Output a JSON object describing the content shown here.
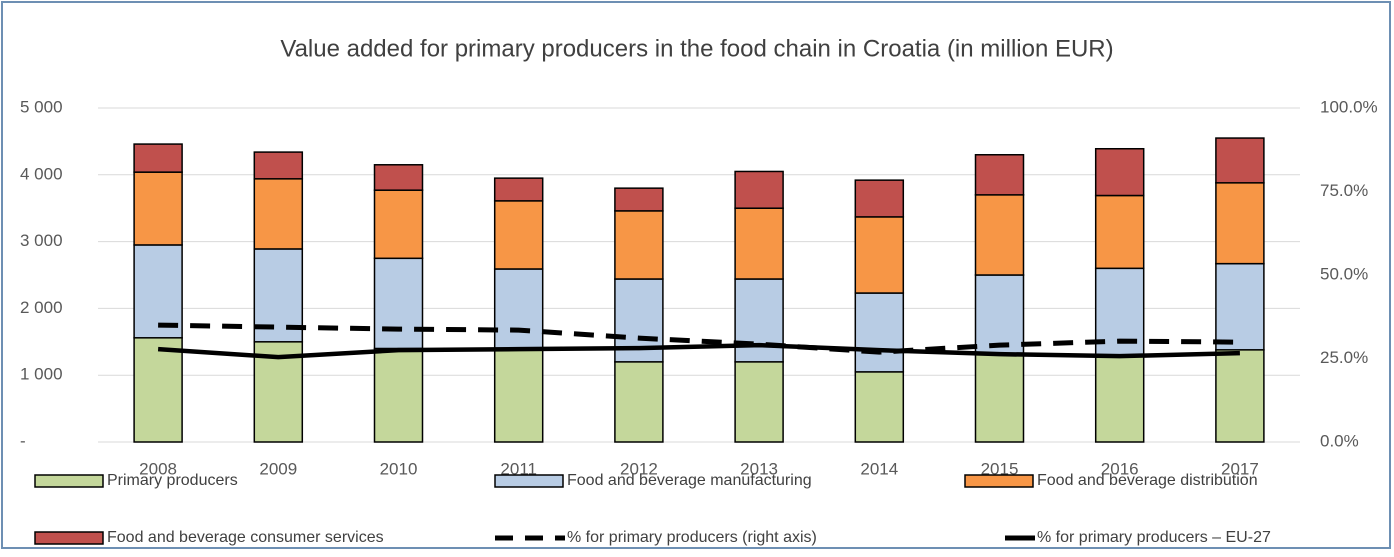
{
  "chart_data": {
    "type": "bar",
    "stacked": true,
    "title": "Value added for primary producers in the food chain in Croatia (in million EUR)",
    "categories": [
      "2008",
      "2009",
      "2010",
      "2011",
      "2012",
      "2013",
      "2014",
      "2015",
      "2016",
      "2017"
    ],
    "series": [
      {
        "name": "Primary producers",
        "color": "#c4d79b",
        "values": [
          1560,
          1500,
          1400,
          1400,
          1200,
          1200,
          1050,
          1330,
          1300,
          1380
        ]
      },
      {
        "name": "Food and beverage manufacturing",
        "color": "#b8cce4",
        "values": [
          1390,
          1390,
          1350,
          1190,
          1240,
          1240,
          1180,
          1170,
          1300,
          1290
        ]
      },
      {
        "name": "Food and beverage distribution",
        "color": "#f79646",
        "values": [
          1090,
          1050,
          1020,
          1020,
          1020,
          1060,
          1140,
          1200,
          1090,
          1210
        ]
      },
      {
        "name": "Food and beverage consumer services",
        "color": "#c0504d",
        "values": [
          420,
          400,
          380,
          340,
          340,
          550,
          550,
          600,
          700,
          670
        ]
      },
      {
        "name": "% for primary producers (right axis)",
        "type": "line",
        "axis": "y2",
        "dashed": true,
        "color": "#000000",
        "values": [
          35.0,
          34.4,
          33.8,
          33.5,
          31.1,
          29.3,
          26.9,
          29.0,
          30.2,
          29.9
        ]
      },
      {
        "name": "% for primary producers – EU-27",
        "type": "line",
        "axis": "y2",
        "dashed": false,
        "color": "#000000",
        "values": [
          27.8,
          25.4,
          27.5,
          27.8,
          28.1,
          29.0,
          27.5,
          26.3,
          25.7,
          26.6
        ]
      }
    ],
    "ylim": [
      0,
      5000
    ],
    "yticks": [
      {
        "value": 0,
        "label": "-"
      },
      {
        "value": 1000,
        "label": "1 000"
      },
      {
        "value": 2000,
        "label": "2 000"
      },
      {
        "value": 3000,
        "label": "3 000"
      },
      {
        "value": 4000,
        "label": "4 000"
      },
      {
        "value": 5000,
        "label": "5 000"
      }
    ],
    "y2lim": [
      0,
      100
    ],
    "y2ticks": [
      {
        "value": 0,
        "label": "0.0%"
      },
      {
        "value": 25,
        "label": "25.0%"
      },
      {
        "value": 50,
        "label": "50.0%"
      },
      {
        "value": 75,
        "label": "75.0%"
      },
      {
        "value": 100,
        "label": "100.0%"
      }
    ],
    "grid": true
  }
}
